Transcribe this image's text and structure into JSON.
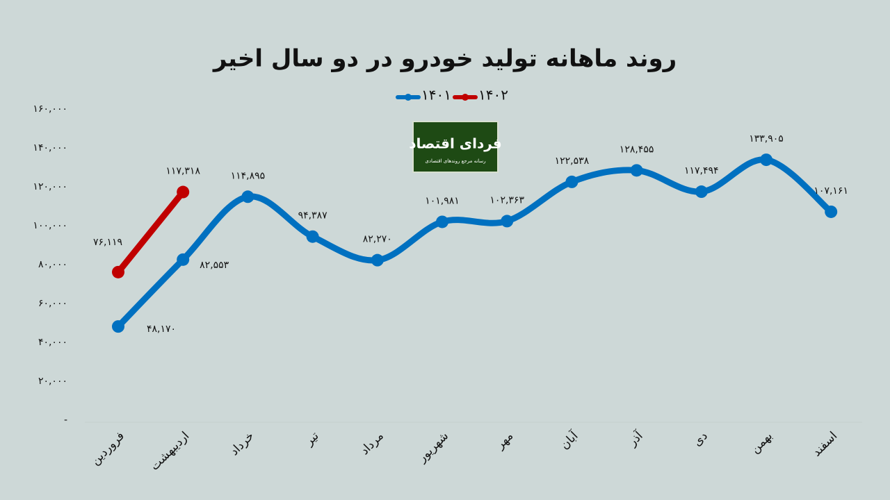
{
  "chart_data": {
    "type": "line",
    "title": "روند ماهانه تولید خودرو در دو سال اخیر",
    "logo": {
      "title": "فردای اقتصاد",
      "subtitle": "رسانه مرجع روندهای اقتصادی"
    },
    "categories": [
      "فروردین",
      "اردیبهشت",
      "خرداد",
      "تیر",
      "مرداد",
      "شهریور",
      "مهر",
      "آبان",
      "آذر",
      "دی",
      "بهمن",
      "اسفند"
    ],
    "series": [
      {
        "name": "۱۴۰۱",
        "color": "#0070c0",
        "values": [
          48170,
          82553,
          114895,
          94387,
          82270,
          101981,
          102363,
          122538,
          128455,
          117494,
          133905,
          107161
        ],
        "value_labels": [
          "۴۸,۱۷۰",
          "۸۲,۵۵۳",
          "۱۱۴,۸۹۵",
          "۹۴,۳۸۷",
          "۸۲,۲۷۰",
          "۱۰۱,۹۸۱",
          "۱۰۲,۳۶۳",
          "۱۲۲,۵۳۸",
          "۱۲۸,۴۵۵",
          "۱۱۷,۴۹۴",
          "۱۳۳,۹۰۵",
          "۱۰۷,۱۶۱"
        ]
      },
      {
        "name": "۱۴۰۲",
        "color": "#c00000",
        "values": [
          76119,
          117318,
          null,
          null,
          null,
          null,
          null,
          null,
          null,
          null,
          null,
          null
        ],
        "value_labels": [
          "۷۶,۱۱۹",
          "۱۱۷,۳۱۸",
          null,
          null,
          null,
          null,
          null,
          null,
          null,
          null,
          null,
          null
        ]
      }
    ],
    "ylim": [
      0,
      160000
    ],
    "yticks": [
      {
        "value": 0,
        "label": "-"
      },
      {
        "value": 20000,
        "label": "۲۰,۰۰۰"
      },
      {
        "value": 40000,
        "label": "۴۰,۰۰۰"
      },
      {
        "value": 60000,
        "label": "۶۰,۰۰۰"
      },
      {
        "value": 80000,
        "label": "۸۰,۰۰۰"
      },
      {
        "value": 100000,
        "label": "۱۰۰,۰۰۰"
      },
      {
        "value": 120000,
        "label": "۱۲۰,۰۰۰"
      },
      {
        "value": 140000,
        "label": "۱۴۰,۰۰۰"
      },
      {
        "value": 160000,
        "label": "۱۶۰,۰۰۰"
      }
    ],
    "grid": false,
    "legend": "top"
  }
}
